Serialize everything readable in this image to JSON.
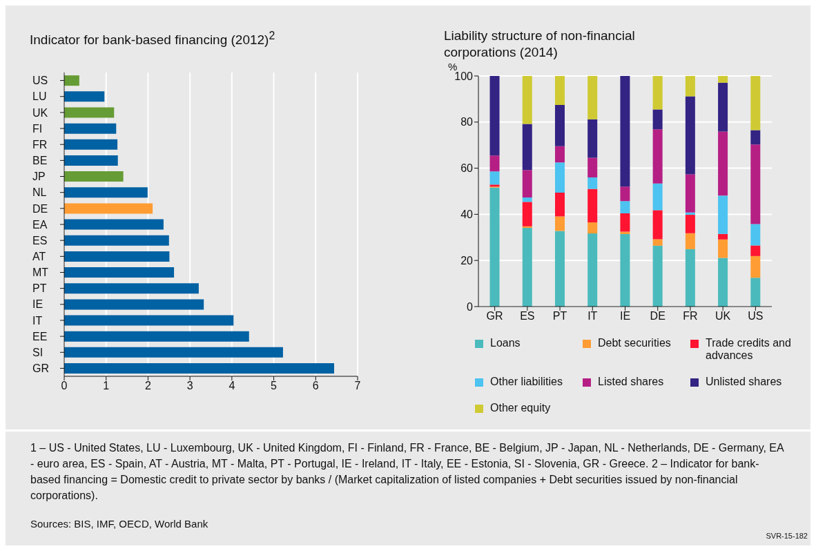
{
  "chart_data": [
    {
      "type": "bar",
      "orientation": "horizontal",
      "title": "Indicator for bank-based financing (2012)$^{2}$",
      "categories": [
        "US",
        "LU",
        "UK",
        "FI",
        "FR",
        "BE",
        "JP",
        "NL",
        "DE",
        "EA",
        "ES",
        "AT",
        "MT",
        "PT",
        "IE",
        "IT",
        "EE",
        "SI",
        "GR"
      ],
      "values": [
        0.36,
        0.96,
        1.19,
        1.24,
        1.27,
        1.28,
        1.41,
        1.99,
        2.11,
        2.37,
        2.5,
        2.51,
        2.62,
        3.21,
        3.33,
        4.04,
        4.41,
        5.22,
        6.44
      ],
      "colors": [
        "#669c35",
        "#0061a3",
        "#669c35",
        "#0061a3",
        "#0061a3",
        "#0061a3",
        "#669c35",
        "#0061a3",
        "#ff9c33",
        "#0061a3",
        "#0061a3",
        "#0061a3",
        "#0061a3",
        "#0061a3",
        "#0061a3",
        "#0061a3",
        "#0061a3",
        "#0061a3",
        "#0061a3"
      ],
      "xlim": [
        0,
        7
      ],
      "xticks": [
        0,
        1,
        2,
        3,
        4,
        5,
        6,
        7
      ],
      "grid": "x",
      "annotations": [
        "1 – US - United States, LU - Luxembourg, UK - United Kingdom, FI - Finland, FR - France, BE - Belgium, JP - Japan, NL - Netherlands, DE - Germany, EA - euro area, ES - Spain, AT - Austria, MT - Malta, PT - Portugal, IE - Ireland, IT - Italy, EE - Estonia, SI - Slovenia, GR - Greece.  2 – Indicator for bank-based financing = Domestic credit to private sector by banks / (Market capitalization of listed companies + Debt securities issued by non-financial corporations).",
        "Sources: BIS, IMF, OECD, World Bank",
        "SVR-15-182"
      ]
    },
    {
      "type": "bar",
      "stacked": true,
      "title": "Liability structure of non-financial corporations (2014)",
      "ylabel": "%",
      "categories": [
        "GR",
        "ES",
        "PT",
        "IT",
        "IE",
        "DE",
        "FR",
        "UK",
        "US"
      ],
      "series": [
        {
          "name": "Loans",
          "color": "#4bbabc",
          "values": [
            51.6,
            34.1,
            32.8,
            31.7,
            31.4,
            26.4,
            24.9,
            21.1,
            12.5
          ]
        },
        {
          "name": "Debt securities",
          "color": "#ff9c33",
          "values": [
            0.4,
            0.7,
            6.3,
            4.8,
            1.1,
            2.8,
            6.9,
            8.0,
            9.4
          ]
        },
        {
          "name": "Trade credits and advances",
          "color": "#ff1431",
          "values": [
            0.9,
            10.6,
            10.3,
            14.5,
            7.9,
            12.6,
            8.0,
            2.4,
            4.6
          ]
        },
        {
          "name": "Other liabilities",
          "color": "#4cc3f0",
          "values": [
            5.7,
            1.9,
            13.1,
            5.0,
            5.3,
            11.6,
            1.0,
            16.6,
            9.3
          ]
        },
        {
          "name": "Listed shares",
          "color": "#b51f84",
          "values": [
            6.9,
            11.9,
            7.0,
            8.5,
            6.3,
            23.5,
            16.5,
            27.8,
            34.5
          ]
        },
        {
          "name": "Unlisted shares",
          "color": "#332383",
          "values": [
            34.5,
            20.0,
            17.9,
            16.7,
            48.0,
            8.6,
            33.9,
            21.2,
            6.2
          ]
        },
        {
          "name": "Other equity",
          "color": "#cfca33",
          "values": [
            0,
            20.8,
            12.6,
            18.8,
            0,
            14.5,
            8.8,
            2.9,
            23.5
          ]
        }
      ],
      "ylim": [
        0,
        100
      ],
      "yticks": [
        0,
        20,
        40,
        60,
        80,
        100
      ],
      "grid": "y",
      "legend": "bottom"
    }
  ]
}
